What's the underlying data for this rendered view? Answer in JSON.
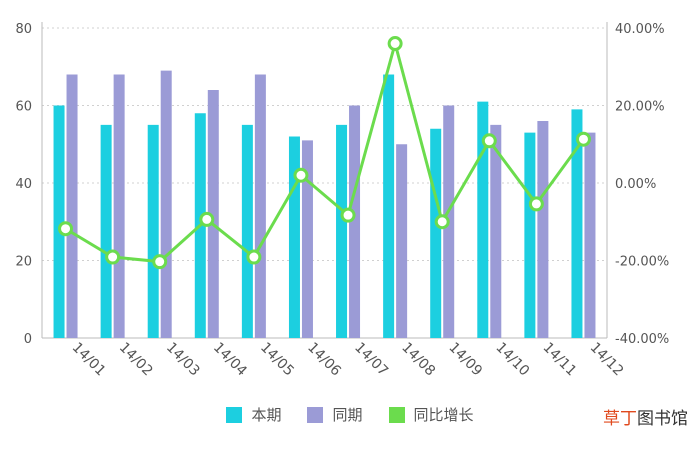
{
  "chart_data": {
    "type": "bar",
    "categories": [
      "14/01",
      "14/02",
      "14/03",
      "14/04",
      "14/05",
      "14/06",
      "14/07",
      "14/08",
      "14/09",
      "14/10",
      "14/11",
      "14/12"
    ],
    "series": [
      {
        "name": "本期",
        "type": "bar",
        "axis": "left",
        "color": "#1ccfe0",
        "values": [
          60,
          55,
          55,
          58,
          55,
          52,
          55,
          68,
          54,
          61,
          53,
          59
        ]
      },
      {
        "name": "同期",
        "type": "bar",
        "axis": "left",
        "color": "#9b9bd6",
        "values": [
          68,
          68,
          69,
          64,
          68,
          51,
          60,
          50,
          60,
          55,
          56,
          53
        ]
      },
      {
        "name": "同比增长",
        "type": "line",
        "axis": "right",
        "color": "#6bdc4d",
        "values": [
          -11.8,
          -19.1,
          -20.3,
          -9.4,
          -19.1,
          2.0,
          -8.3,
          36.0,
          -10.0,
          10.9,
          -5.4,
          11.3
        ]
      }
    ],
    "y_left": {
      "ylim": [
        0,
        80
      ],
      "ticks": [
        "0",
        "20",
        "40",
        "60",
        "80"
      ]
    },
    "y_right": {
      "ylim": [
        -40,
        40
      ],
      "ticks": [
        "-40.00%",
        "-20.00%",
        "0.00%",
        "20.00%",
        "40.00%"
      ]
    },
    "grid": "dotted-horizontal",
    "legend_position": "bottom-center",
    "title": "",
    "xlabel": "",
    "ylabel": ""
  },
  "watermark": {
    "accent": "草丁",
    "rest": "图书馆"
  }
}
